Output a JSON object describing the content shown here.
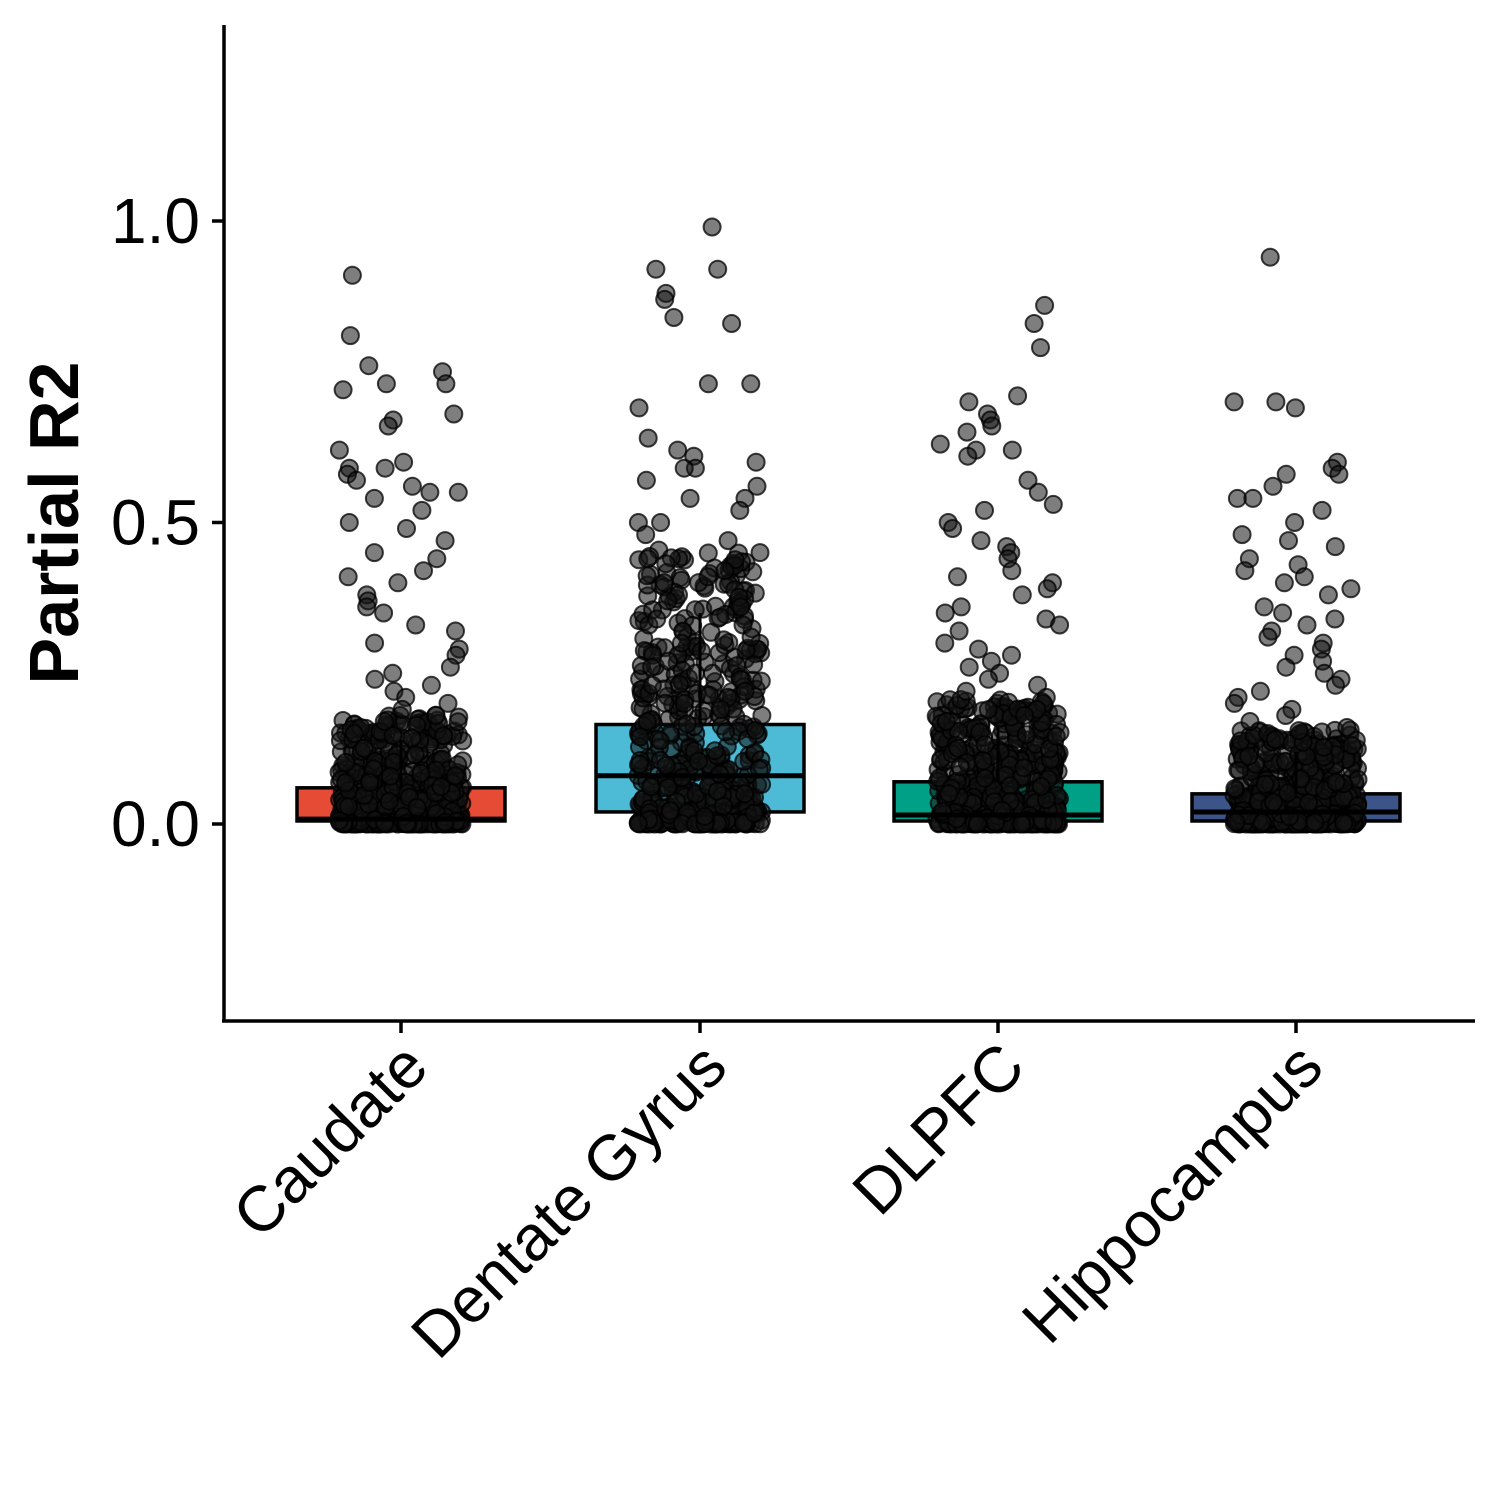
{
  "chart_data": {
    "type": "box",
    "title": "",
    "xlabel": "",
    "ylabel": "Partial R2",
    "ylim": [
      -0.33,
      1.33
    ],
    "yticks": [
      "0.0",
      "0.5",
      "1.0"
    ],
    "grid": false,
    "legend": "none",
    "categories": [
      "Caudate",
      "Dentate Gyrus",
      "DLPFC",
      "Hippocampus"
    ],
    "boxes": [
      {
        "category": "Caudate",
        "q1": 0.005,
        "median": 0.008,
        "q3": 0.06,
        "whisker_high": 0.14,
        "color": "#E64B35",
        "outliers": [
          0.91,
          0.81,
          0.76,
          0.75,
          0.73,
          0.73,
          0.72,
          0.68,
          0.67,
          0.66,
          0.62,
          0.6,
          0.59,
          0.59,
          0.58,
          0.57,
          0.56,
          0.55,
          0.55,
          0.54,
          0.52,
          0.5,
          0.49,
          0.47,
          0.45,
          0.44,
          0.42,
          0.41,
          0.4,
          0.38,
          0.37,
          0.36,
          0.35,
          0.33,
          0.32,
          0.3,
          0.29,
          0.28,
          0.26,
          0.25,
          0.24,
          0.23,
          0.22,
          0.21,
          0.2,
          0.19,
          0.18,
          0.17,
          0.16,
          0.15
        ]
      },
      {
        "category": "Dentate Gyrus",
        "q1": 0.02,
        "median": 0.08,
        "q3": 0.165,
        "whisker_high": 0.35,
        "color": "#4DBBD5",
        "outliers": [
          0.99,
          0.92,
          0.92,
          0.88,
          0.87,
          0.84,
          0.83,
          0.73,
          0.73,
          0.69,
          0.64,
          0.62,
          0.61,
          0.6,
          0.59,
          0.59,
          0.57,
          0.56,
          0.54,
          0.54,
          0.52,
          0.5,
          0.5,
          0.48,
          0.47,
          0.45,
          0.44,
          0.42,
          0.41,
          0.4,
          0.38,
          0.37,
          0.36,
          0.34,
          0.33,
          0.31,
          0.3,
          0.28,
          0.27,
          0.26,
          0.25,
          0.24,
          0.23,
          0.22,
          0.21,
          0.2,
          0.19,
          0.18,
          0.17
        ]
      },
      {
        "category": "DLPFC",
        "q1": 0.005,
        "median": 0.015,
        "q3": 0.07,
        "whisker_high": 0.16,
        "color": "#00A087",
        "outliers": [
          0.86,
          0.83,
          0.79,
          0.71,
          0.7,
          0.68,
          0.67,
          0.66,
          0.65,
          0.63,
          0.62,
          0.62,
          0.61,
          0.57,
          0.55,
          0.53,
          0.52,
          0.5,
          0.49,
          0.47,
          0.46,
          0.45,
          0.44,
          0.42,
          0.41,
          0.4,
          0.39,
          0.38,
          0.36,
          0.35,
          0.34,
          0.33,
          0.32,
          0.3,
          0.29,
          0.28,
          0.27,
          0.26,
          0.25,
          0.24,
          0.23,
          0.22,
          0.21,
          0.2,
          0.19,
          0.18,
          0.17
        ]
      },
      {
        "category": "Hippocampus",
        "q1": 0.005,
        "median": 0.02,
        "q3": 0.05,
        "whisker_high": 0.12,
        "color": "#3C5488",
        "outliers": [
          0.94,
          0.7,
          0.7,
          0.69,
          0.6,
          0.59,
          0.58,
          0.58,
          0.56,
          0.54,
          0.54,
          0.52,
          0.5,
          0.48,
          0.47,
          0.46,
          0.44,
          0.43,
          0.42,
          0.41,
          0.4,
          0.39,
          0.38,
          0.36,
          0.35,
          0.34,
          0.33,
          0.32,
          0.31,
          0.3,
          0.29,
          0.28,
          0.27,
          0.26,
          0.25,
          0.24,
          0.23,
          0.22,
          0.21,
          0.2,
          0.19,
          0.18,
          0.17,
          0.16,
          0.15,
          0.14,
          0.13
        ]
      }
    ]
  }
}
